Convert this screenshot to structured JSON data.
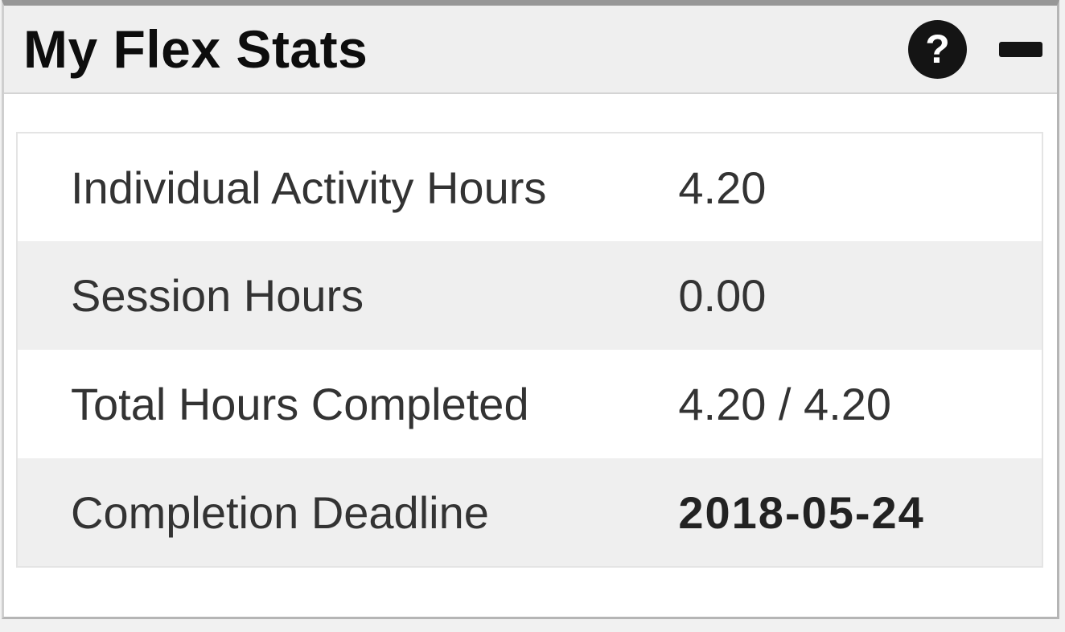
{
  "panel": {
    "title": "My Flex Stats",
    "icons": {
      "help": {
        "name": "question-mark-icon",
        "glyph": "?"
      },
      "collapse": {
        "name": "minus-icon"
      }
    }
  },
  "stats": {
    "rows": [
      {
        "label": "Individual Activity Hours",
        "value": "4.20"
      },
      {
        "label": "Session Hours",
        "value": "0.00"
      },
      {
        "label": "Total Hours Completed",
        "value": "4.20 / 4.20"
      },
      {
        "label": "Completion Deadline",
        "value": "2018-05-24"
      }
    ]
  },
  "colors": {
    "header_bg": "#efefef",
    "stripe_bg": "#efefef",
    "panel_border": "#b5b5b5",
    "icon_bg": "#141414",
    "text": "#333333",
    "page_bg": "#f1f1f1"
  }
}
